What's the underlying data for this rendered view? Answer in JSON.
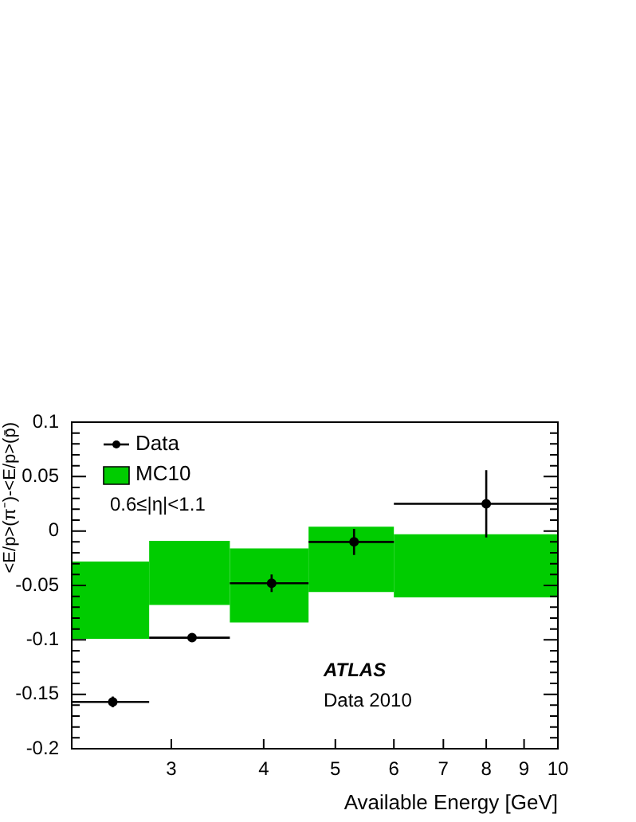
{
  "chart_data": {
    "type": "scatter",
    "xlabel": "Available Energy [GeV]",
    "ylabel": "<E/p>(π⁻)-<E/p>(p̄)",
    "log": "x",
    "xlim": [
      2.2,
      10
    ],
    "xticks": [
      3,
      4,
      5,
      6,
      7,
      8,
      9,
      10
    ],
    "ylim": [
      -0.2,
      0.1
    ],
    "yticks": [
      -0.2,
      {
        "value": -0.19,
        "label": null
      },
      {
        "value": -0.18,
        "label": null
      },
      {
        "value": -0.17,
        "label": null
      },
      {
        "value": -0.16,
        "label": null
      },
      -0.15,
      {
        "value": -0.14,
        "label": null
      },
      {
        "value": -0.13,
        "label": null
      },
      {
        "value": -0.12,
        "label": null
      },
      {
        "value": -0.11,
        "label": null
      },
      -0.1,
      {
        "value": -0.09,
        "label": null
      },
      {
        "value": -0.08,
        "label": null
      },
      {
        "value": -0.07,
        "label": null
      },
      {
        "value": -0.06,
        "label": null
      },
      -0.05,
      {
        "value": -0.04,
        "label": null
      },
      {
        "value": -0.03,
        "label": null
      },
      {
        "value": -0.02,
        "label": null
      },
      {
        "value": -0.01,
        "label": null
      },
      0,
      {
        "value": 0.01,
        "label": null
      },
      {
        "value": 0.02,
        "label": null
      },
      {
        "value": 0.03,
        "label": null
      },
      {
        "value": 0.04,
        "label": null
      },
      0.05,
      {
        "value": 0.06,
        "label": null
      },
      {
        "value": 0.07,
        "label": null
      },
      {
        "value": 0.08,
        "label": null
      },
      {
        "value": 0.09,
        "label": null
      },
      0.1
    ],
    "grid": false,
    "legend": "top left",
    "marker": "circle",
    "series": [
      {
        "name": "Data",
        "color": "#000000",
        "x": [
          2.5,
          3.2,
          4.1,
          5.3,
          8
        ],
        "values": [
          -0.157,
          -0.098,
          -0.048,
          -0.01,
          0.025
        ],
        "errors": [
          0.005,
          0.004,
          0.008,
          0.012,
          0.031
        ],
        "xerrors": [
          [
            2.2,
            2.8
          ],
          [
            2.8,
            3.6
          ],
          [
            3.6,
            4.6
          ],
          [
            4.6,
            6
          ],
          [
            6,
            10
          ]
        ]
      },
      {
        "name": "MC10",
        "type": "histogram",
        "color": "#00cc00",
        "bins": [
          2.2,
          2.8,
          3.6,
          4.6,
          6,
          10
        ],
        "base": [
          -0.099,
          -0.068,
          -0.084,
          -0.056,
          -0.061
        ],
        "values": [
          0.071,
          0.059,
          0.068,
          0.06,
          0.058
        ]
      }
    ],
    "annotations": [
      "0.6≤|η|<1.1",
      "ATLAS",
      "Data 2010"
    ]
  }
}
